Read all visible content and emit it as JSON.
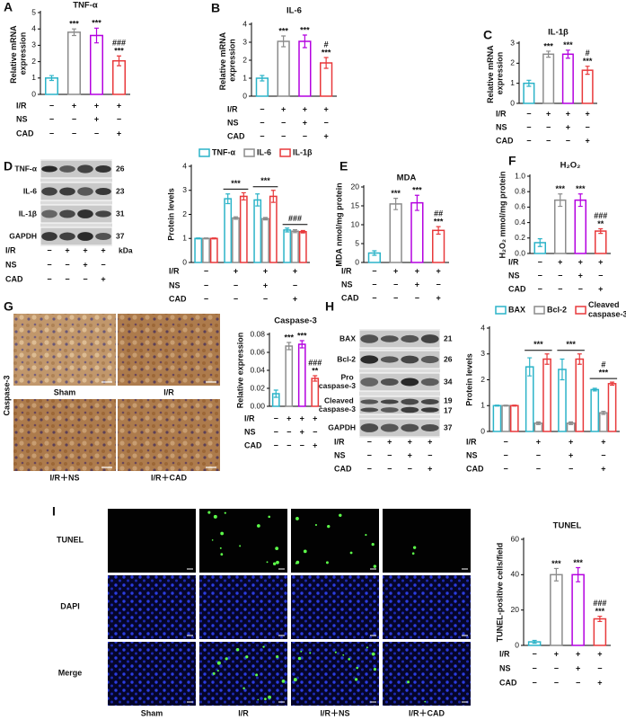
{
  "conditions": {
    "rows": [
      {
        "label": "I/R",
        "signs": [
          "−",
          "+",
          "+",
          "+"
        ]
      },
      {
        "label": "NS",
        "signs": [
          "−",
          "−",
          "+",
          "−"
        ]
      },
      {
        "label": "CAD",
        "signs": [
          "−",
          "−",
          "−",
          "+"
        ]
      }
    ]
  },
  "blots": {
    "D": {
      "panel": "D",
      "unit": "kDa",
      "bands": [
        {
          "label": "TNF-α",
          "kda": [
            "26"
          ]
        },
        {
          "label": "IL-6",
          "kda": [
            "23"
          ]
        },
        {
          "label": "IL-1β",
          "kda": [
            "31"
          ]
        },
        {
          "label": "GAPDH",
          "kda": [
            "37"
          ]
        }
      ]
    },
    "H": {
      "panel": "H",
      "bands": [
        {
          "label": "BAX",
          "kda": [
            "21"
          ]
        },
        {
          "label": "Bcl-2",
          "kda": [
            "26"
          ]
        },
        {
          "label": "Pro caspase-3",
          "kda": [
            "34"
          ]
        },
        {
          "label": "Cleaved caspase-3",
          "kda": [
            "19",
            "17"
          ]
        },
        {
          "label": "GAPDH",
          "kda": [
            "37"
          ]
        }
      ]
    }
  },
  "micrographs": {
    "G": {
      "panel": "G",
      "stain": "Caspase-3",
      "labels": [
        "Sham",
        "I/R",
        "I/R＋NS",
        "I/R＋CAD"
      ]
    },
    "I": {
      "panel": "I",
      "rows": [
        "TUNEL",
        "DAPI",
        "Merge"
      ],
      "columns": [
        "Sham",
        "I/R",
        "I/R＋NS",
        "I/R＋CAD"
      ]
    }
  },
  "chart_data": [
    {
      "type": "bar",
      "panel": "A",
      "title": "TNF-α",
      "y_label": "Relative mRNA expression",
      "ylim": [
        0,
        5
      ],
      "yticks": [
        0,
        1,
        2,
        3,
        4,
        5
      ],
      "values": [
        1.0,
        3.8,
        3.6,
        2.05
      ],
      "errors": [
        0.15,
        0.2,
        0.45,
        0.3
      ],
      "colors": [
        "#2bb3c8",
        "#8c8c8c",
        "#b400e0",
        "#e8393b"
      ],
      "sig_vs_sham": [
        null,
        "***",
        "***",
        "***"
      ],
      "sig_vs_ir": [
        null,
        null,
        null,
        "###"
      ]
    },
    {
      "type": "bar",
      "panel": "B",
      "title": "IL-6",
      "y_label": "Relative mRNA expression",
      "ylim": [
        0,
        4
      ],
      "yticks": [
        0,
        1,
        2,
        3,
        4
      ],
      "values": [
        1.0,
        3.05,
        3.05,
        1.85
      ],
      "errors": [
        0.15,
        0.3,
        0.35,
        0.3
      ],
      "colors": [
        "#2bb3c8",
        "#8c8c8c",
        "#b400e0",
        "#e8393b"
      ],
      "sig_vs_sham": [
        null,
        "***",
        "***",
        "***"
      ],
      "sig_vs_ir": [
        null,
        null,
        null,
        "#"
      ]
    },
    {
      "type": "bar",
      "panel": "C",
      "title": "IL-1β",
      "y_label": "Relative mRNA expression",
      "ylim": [
        0,
        3
      ],
      "yticks": [
        0,
        1,
        2,
        3
      ],
      "values": [
        1.0,
        2.45,
        2.45,
        1.65
      ],
      "errors": [
        0.15,
        0.15,
        0.2,
        0.2
      ],
      "colors": [
        "#2bb3c8",
        "#8c8c8c",
        "#b400e0",
        "#e8393b"
      ],
      "sig_vs_sham": [
        null,
        "***",
        "***",
        "***"
      ],
      "sig_vs_ir": [
        null,
        null,
        null,
        "#"
      ]
    },
    {
      "type": "bar",
      "y_label": "Protein levels",
      "ylim": [
        0,
        4
      ],
      "yticks": [
        0,
        1,
        2,
        3,
        4
      ],
      "series": [
        {
          "name": "TNF-α",
          "color": "#2bb3c8",
          "values": [
            1,
            2.65,
            2.6,
            1.35
          ],
          "errors": [
            0.02,
            0.2,
            0.25,
            0.08
          ]
        },
        {
          "name": "IL-6",
          "color": "#8c8c8c",
          "values": [
            1,
            1.85,
            1.82,
            1.3
          ],
          "errors": [
            0.02,
            0.05,
            0.05,
            0.06
          ]
        },
        {
          "name": "IL-1β",
          "color": "#e8393b",
          "values": [
            1,
            2.75,
            2.75,
            1.28
          ],
          "errors": [
            0.02,
            0.15,
            0.25,
            0.05
          ]
        }
      ],
      "sig_vs_sham": [
        null,
        "***",
        "***",
        null
      ],
      "sig_vs_ir": [
        null,
        null,
        null,
        "###"
      ]
    },
    {
      "type": "bar",
      "panel": "E",
      "title": "MDA",
      "y_label": "MDA nmol/mg protein",
      "ylim": [
        0,
        20
      ],
      "yticks": [
        0,
        5,
        10,
        15,
        20
      ],
      "values": [
        2.5,
        15.5,
        15.8,
        8.5
      ],
      "errors": [
        0.6,
        1.5,
        2.0,
        1.0
      ],
      "colors": [
        "#2bb3c8",
        "#8c8c8c",
        "#b400e0",
        "#e8393b"
      ],
      "sig_vs_sham": [
        null,
        "***",
        "***",
        "***"
      ],
      "sig_vs_ir": [
        null,
        null,
        null,
        "##"
      ]
    },
    {
      "type": "bar",
      "panel": "F",
      "title": "H₂O₂",
      "y_label": "H₂O₂ mmol/mg protein",
      "ylim": [
        0,
        1
      ],
      "yticks": [
        {
          "value": 0,
          "label": "0.0"
        },
        {
          "value": 0.2,
          "label": "0.2"
        },
        {
          "value": 0.4,
          "label": "0.4"
        },
        {
          "value": 0.6,
          "label": "0.6"
        },
        {
          "value": 0.8,
          "label": "0.8"
        },
        {
          "value": 1,
          "label": "1.0"
        }
      ],
      "values": [
        0.14,
        0.69,
        0.69,
        0.29
      ],
      "errors": [
        0.05,
        0.08,
        0.08,
        0.03
      ],
      "colors": [
        "#2bb3c8",
        "#8c8c8c",
        "#b400e0",
        "#e8393b"
      ],
      "sig_vs_sham": [
        null,
        "***",
        "***",
        "**"
      ],
      "sig_vs_ir": [
        null,
        null,
        null,
        "###"
      ]
    },
    {
      "type": "bar",
      "title": "Caspase-3",
      "y_label": "Relative expression",
      "ylim": [
        0,
        0.08
      ],
      "yticks": [
        {
          "value": 0,
          "label": "0.00"
        },
        {
          "value": 0.02,
          "label": "0.02"
        },
        {
          "value": 0.04,
          "label": "0.04"
        },
        {
          "value": 0.06,
          "label": "0.06"
        },
        {
          "value": 0.08,
          "label": "0.08"
        }
      ],
      "values": [
        0.014,
        0.067,
        0.069,
        0.031
      ],
      "errors": [
        0.004,
        0.004,
        0.004,
        0.003
      ],
      "colors": [
        "#2bb3c8",
        "#8c8c8c",
        "#b400e0",
        "#e8393b"
      ],
      "sig_vs_sham": [
        null,
        "***",
        "***",
        "**"
      ],
      "sig_vs_ir": [
        null,
        null,
        null,
        "###"
      ]
    },
    {
      "type": "bar",
      "y_label": "Protein levels",
      "ylim": [
        0,
        4
      ],
      "yticks": [
        0,
        1,
        2,
        3,
        4
      ],
      "series": [
        {
          "name": "BAX",
          "color": "#2bb3c8",
          "values": [
            1,
            2.5,
            2.4,
            1.62
          ],
          "errors": [
            0.02,
            0.35,
            0.4,
            0.05
          ]
        },
        {
          "name": "Bcl-2",
          "color": "#8c8c8c",
          "values": [
            1,
            0.32,
            0.32,
            0.72
          ],
          "errors": [
            0.02,
            0.05,
            0.05,
            0.06
          ]
        },
        {
          "name": "Cleaved caspase-3",
          "color": "#e8393b",
          "values": [
            1,
            2.8,
            2.8,
            1.85
          ],
          "errors": [
            0.02,
            0.2,
            0.2,
            0.06
          ]
        }
      ],
      "sig_vs_sham": [
        null,
        "***",
        "***",
        "***"
      ],
      "sig_vs_ir": [
        null,
        null,
        null,
        "#"
      ]
    },
    {
      "type": "bar",
      "title": "TUNEL",
      "y_label": "TUNEL-positive cells/field",
      "ylim": [
        0,
        60
      ],
      "yticks": [
        0,
        20,
        40,
        60
      ],
      "values": [
        2,
        40,
        40,
        15
      ],
      "errors": [
        0.8,
        3.5,
        4,
        1.5
      ],
      "colors": [
        "#2bb3c8",
        "#8c8c8c",
        "#b400e0",
        "#e8393b"
      ],
      "sig_vs_sham": [
        null,
        "***",
        "***",
        "***"
      ],
      "sig_vs_ir": [
        null,
        null,
        null,
        "###"
      ]
    }
  ]
}
